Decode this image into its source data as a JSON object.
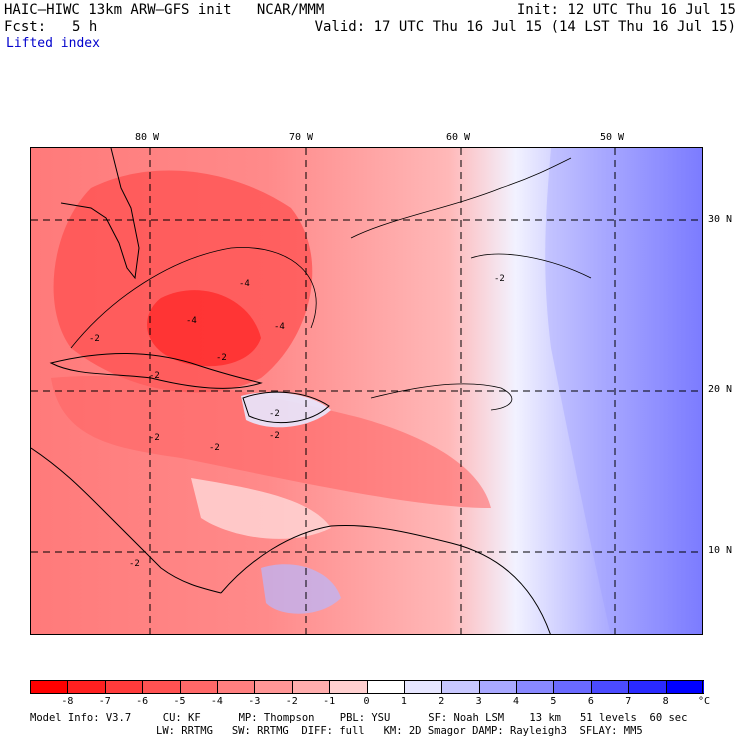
{
  "header": {
    "title": "HAIC–HIWC 13km ARW–GFS init   NCAR/MMM",
    "init": "Init: 12 UTC Thu 16 Jul 15",
    "fcst_label": "Fcst:",
    "fcst_value": "5 h",
    "valid": "Valid: 17 UTC Thu 16 Jul 15 (14 LST Thu 16 Jul 15)",
    "field": "Lifted index"
  },
  "map": {
    "lon_labels": [
      "80 W",
      "70 W",
      "60 W",
      "50 W"
    ],
    "lat_labels": [
      "30 N",
      "20 N",
      "10 N"
    ],
    "contour_labels": [
      "-2",
      "-4",
      "-4",
      "-2",
      "-2",
      "-2",
      "-2",
      "-2",
      "-2",
      "-2",
      "-2",
      "-4"
    ]
  },
  "colorbar": {
    "ticks": [
      "-8",
      "-7",
      "-6",
      "-5",
      "-4",
      "-3",
      "-2",
      "-1",
      "0",
      "1",
      "2",
      "3",
      "4",
      "5",
      "6",
      "7",
      "8"
    ],
    "unit": "°C",
    "colors": [
      "#ff0000",
      "#ff2020",
      "#ff3b3b",
      "#ff5252",
      "#ff6868",
      "#ff7f7f",
      "#ff9696",
      "#ffadad",
      "#ffd0d0",
      "#ffffff",
      "#e6e6ff",
      "#c8c8ff",
      "#a8a8ff",
      "#8888ff",
      "#6a6aff",
      "#4b4bff",
      "#2a2aff",
      "#0000ff"
    ]
  },
  "model_info": {
    "line1": "Model Info: V3.7     CU: KF      MP: Thompson    PBL: YSU      SF: Noah LSM    13 km   51 levels  60 sec",
    "line2": "LW: RRTMG   SW: RRTMG  DIFF: full   KM: 2D Smagor DAMP: Rayleigh3  SFLAY: MM5"
  }
}
